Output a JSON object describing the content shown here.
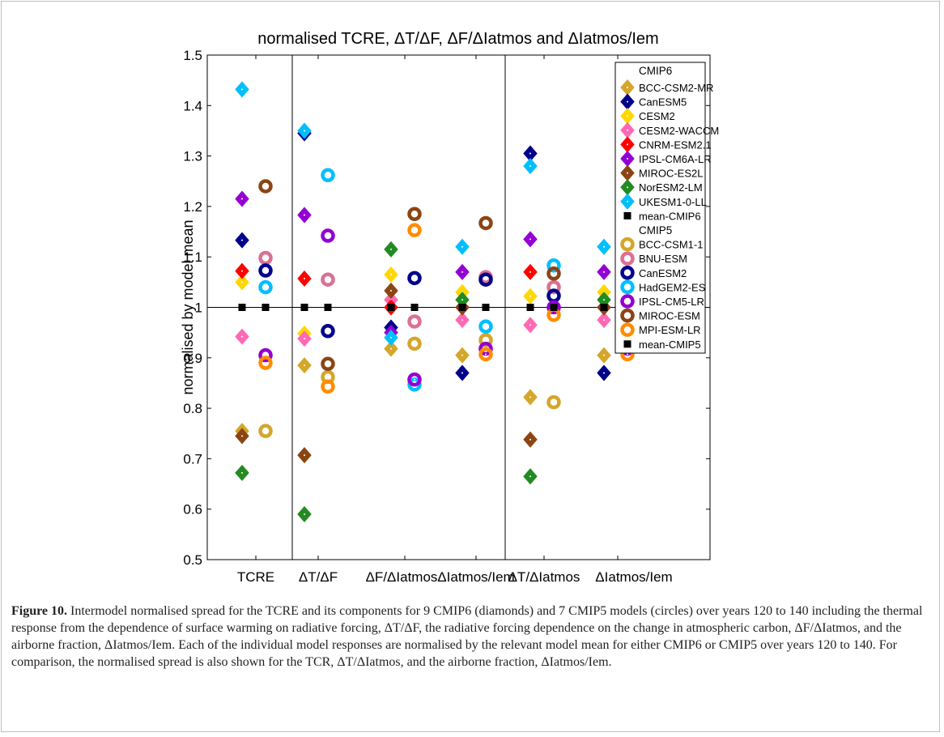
{
  "caption": {
    "label": "Figure 10.",
    "text": "Intermodel normalised spread for the TCRE and its components for 9 CMIP6 (diamonds) and 7 CMIP5 models (circles) over years 120 to 140 including the thermal response from the dependence of surface warming on radiative forcing, ΔT/ΔF, the radiative forcing dependence on the change in atmospheric carbon, ΔF/ΔIatmos, and the airborne fraction, ΔIatmos/Iem. Each of the individual model responses are normalised by the relevant model mean for either CMIP6 or CMIP5 over years 120 to 140. For comparison, the normalised spread is also shown for the TCR, ΔT/ΔIatmos, and the airborne fraction, ΔIatmos/Iem."
  },
  "chart_data": {
    "type": "scatter",
    "title": "normalised TCRE,  ΔT/ΔF,  ΔF/ΔIatmos and ΔIatmos/Iem",
    "ylabel": "normalised by model mean",
    "xlabel": "",
    "ylim": [
      0.5,
      1.5
    ],
    "yticks": [
      "0.5",
      "0.6",
      "0.7",
      "0.8",
      "0.9",
      "1",
      "1.1",
      "1.2",
      "1.3",
      "1.4",
      "1.5"
    ],
    "categories": [
      "TCRE",
      "ΔT/ΔF",
      "ΔF/ΔIatmos",
      "ΔIatmos/Iem",
      "ΔT/ΔIatmos",
      "ΔIatmos/Iem"
    ],
    "reference_line": 1,
    "legend": {
      "placement": "top-right",
      "cmip6_title": "CMIP6",
      "cmip5_title": "CMIP5"
    },
    "cmip6": [
      {
        "name": "BCC-CSM2-MR",
        "color": "#d4a62a",
        "values": [
          0.755,
          0.885,
          0.918,
          0.905,
          0.822,
          0.905
        ]
      },
      {
        "name": "CanESM5",
        "color": "#00008b",
        "values": [
          1.133,
          1.345,
          0.96,
          0.87,
          1.305,
          0.87
        ]
      },
      {
        "name": "CESM2",
        "color": "#ffd700",
        "values": [
          1.05,
          0.948,
          1.065,
          1.03,
          1.022,
          1.03
        ]
      },
      {
        "name": "CESM2-WACCM",
        "color": "#ff69b4",
        "values": [
          0.942,
          0.938,
          1.015,
          0.975,
          0.965,
          0.975
        ]
      },
      {
        "name": "CNRM-ESM2.1",
        "color": "#ff0000",
        "values": [
          1.072,
          1.057,
          1.0,
          1.0,
          1.07,
          1.0
        ]
      },
      {
        "name": "IPSL-CM6A-LR",
        "color": "#9400d3",
        "values": [
          1.215,
          1.183,
          0.95,
          1.07,
          1.135,
          1.07
        ]
      },
      {
        "name": "MIROC-ES2L",
        "color": "#8b4513",
        "values": [
          0.745,
          0.707,
          1.033,
          1.0,
          0.738,
          1.0
        ]
      },
      {
        "name": "NorESM2-LM",
        "color": "#228b22",
        "values": [
          0.672,
          0.59,
          1.115,
          1.015,
          0.665,
          1.015
        ]
      },
      {
        "name": "UKESM1-0-LL",
        "color": "#00bfff",
        "values": [
          1.432,
          1.35,
          0.94,
          1.12,
          1.28,
          1.12
        ]
      },
      {
        "name": "mean-CMIP6",
        "color": "#000000",
        "values": [
          1,
          1,
          1,
          1,
          1,
          1
        ]
      }
    ],
    "cmip5": [
      {
        "name": "BCC-CSM1-1",
        "color": "#d4a62a",
        "values": [
          0.755,
          0.862,
          0.928,
          0.935,
          0.812,
          0.935
        ]
      },
      {
        "name": "BNU-ESM",
        "color": "#db7093",
        "values": [
          1.098,
          1.055,
          0.972,
          1.06,
          1.04,
          1.06
        ]
      },
      {
        "name": "CanESM2",
        "color": "#00008b",
        "values": [
          1.073,
          0.953,
          1.058,
          1.055,
          1.023,
          1.055
        ]
      },
      {
        "name": "HadGEM2-ES",
        "color": "#00bfff",
        "values": [
          1.04,
          1.262,
          0.847,
          0.962,
          1.083,
          0.962
        ]
      },
      {
        "name": "IPSL-CM5-LR",
        "color": "#9400d3",
        "values": [
          0.905,
          1.142,
          0.857,
          0.918,
          1.0,
          0.918
        ]
      },
      {
        "name": "MIROC-ESM",
        "color": "#8b4513",
        "values": [
          1.24,
          0.888,
          1.185,
          1.167,
          1.067,
          1.167
        ]
      },
      {
        "name": "MPI-ESM-LR",
        "color": "#ff8c00",
        "values": [
          0.89,
          0.843,
          1.153,
          0.907,
          0.985,
          0.907
        ]
      },
      {
        "name": "mean-CMIP5",
        "color": "#000000",
        "values": [
          1,
          1,
          1,
          1,
          1,
          1
        ]
      }
    ]
  }
}
